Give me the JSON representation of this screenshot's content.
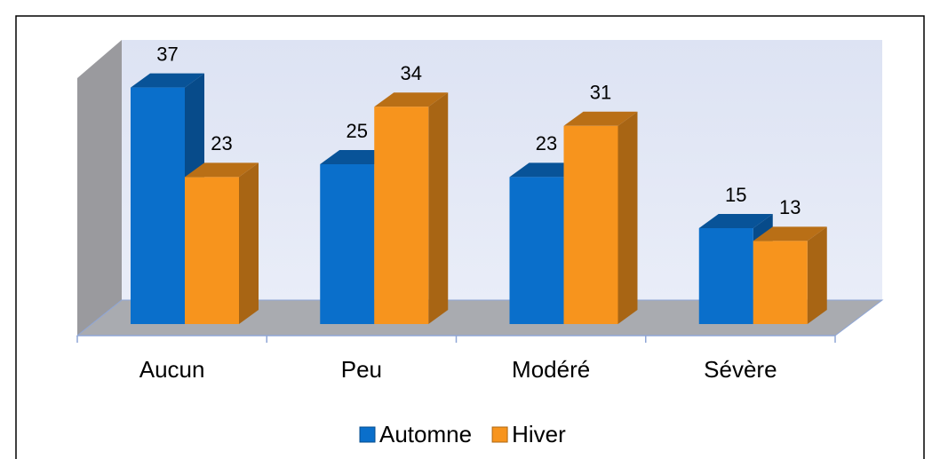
{
  "chart_data": {
    "type": "bar3d",
    "categories": [
      "Aucun",
      "Peu",
      "Modéré",
      "Sévère"
    ],
    "series": [
      {
        "name": "Automne",
        "color": "#0a6fcb",
        "values": [
          37,
          25,
          23,
          15
        ]
      },
      {
        "name": "Hiver",
        "color": "#f7941d",
        "values": [
          23,
          34,
          31,
          13
        ]
      }
    ],
    "ylim": [
      0,
      40
    ],
    "legend": "bottom"
  }
}
